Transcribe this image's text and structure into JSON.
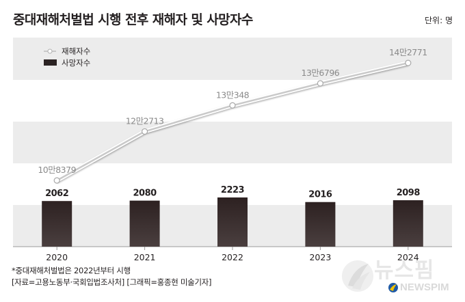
{
  "title": "중대재해처벌법 시행 전후 재해자 및 사망자수",
  "unit": "단위: 명",
  "chart_data": {
    "type": "line+bar",
    "categories": [
      "2020",
      "2021",
      "2022",
      "2023",
      "2024"
    ],
    "series": [
      {
        "name": "재해자수",
        "type": "line",
        "values": [
          108379,
          122713,
          130348,
          136796,
          142771
        ],
        "labels": [
          "10만8379",
          "12만2713",
          "13만348",
          "13만6796",
          "14만2771"
        ],
        "color": "#c8c8c8"
      },
      {
        "name": "사망자수",
        "type": "bar",
        "values": [
          2062,
          2080,
          2223,
          2016,
          2098
        ],
        "labels": [
          "2062",
          "2080",
          "2223",
          "2016",
          "2098"
        ],
        "color": "#2b2323"
      }
    ],
    "legend_position": "top-left",
    "grid": "horizontal bands"
  },
  "footnote": {
    "line1": "*중대재해처벌법은 2022년부터 시행",
    "line2": "[자료=고용노동부·국회입법조사처] [그래픽=홍종현 미술기자]"
  },
  "logo": {
    "korean": "뉴스핌",
    "english": "NEWSPIM"
  }
}
